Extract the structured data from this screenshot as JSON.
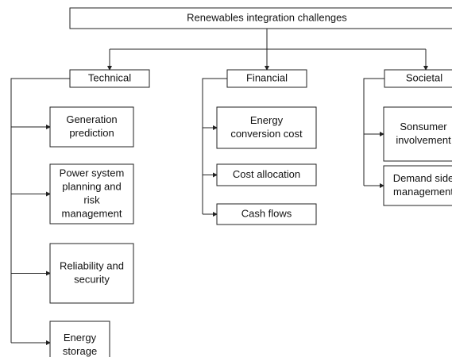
{
  "title": "Renewables integration challenges",
  "categories": [
    {
      "label": "Technical",
      "items": [
        {
          "lines": [
            "Generation",
            "prediction"
          ]
        },
        {
          "lines": [
            "Power system",
            "planning and",
            "risk",
            "management"
          ]
        },
        {
          "lines": [
            "Reliability and",
            "security"
          ]
        },
        {
          "lines": [
            "Energy",
            "storage"
          ]
        }
      ]
    },
    {
      "label": "Financial",
      "items": [
        {
          "lines": [
            "Energy",
            "conversion cost"
          ]
        },
        {
          "lines": [
            "Cost allocation"
          ]
        },
        {
          "lines": [
            "Cash flows"
          ]
        }
      ]
    },
    {
      "label": "Societal",
      "items": [
        {
          "lines": [
            "Sonsumer",
            "involvement"
          ]
        },
        {
          "lines": [
            "Demand side",
            "management"
          ]
        }
      ]
    }
  ]
}
